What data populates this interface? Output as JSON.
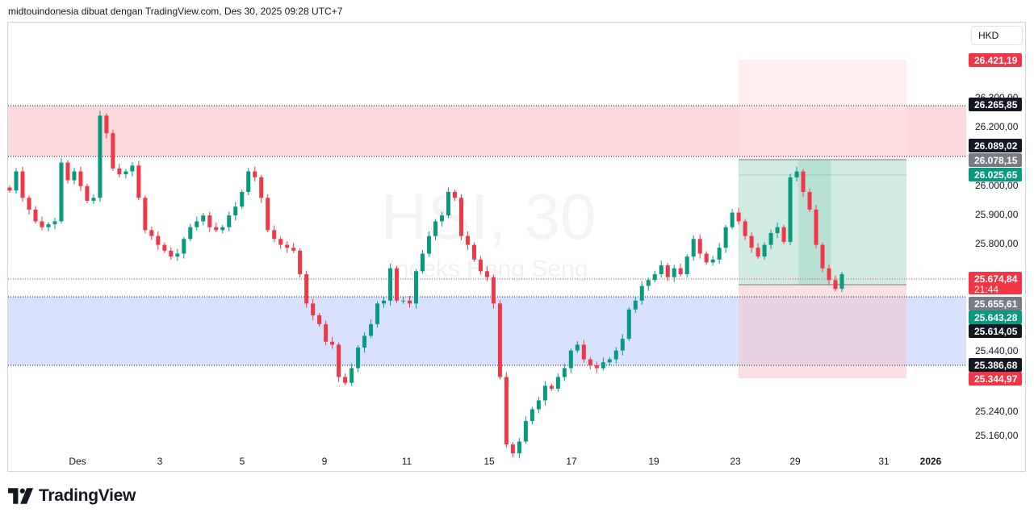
{
  "header": {
    "text": "midtouindonesia dibuat dengan TradingView.com, Des 30, 2025 09:28 UTC+7"
  },
  "currency": "HKD",
  "watermark": {
    "symbol": "HSI, 30",
    "name": "Indeks Hang Seng"
  },
  "brand": {
    "name": "TradingView"
  },
  "colors": {
    "up": "#089981",
    "down": "#f23645",
    "resistance_zone": "#fcd5d8",
    "support_zone": "#d6e0ff",
    "target_zone": "#d5ece6",
    "stop_zone": "#fde2e4"
  },
  "price_axis": {
    "ticks": [
      "26.300,00",
      "26.200,00",
      "26.000,00",
      "25.900,00",
      "25.800,00",
      "25.440,00",
      "25.240,00",
      "25.160,00"
    ],
    "labels": [
      {
        "text": "26.421,19",
        "kind": "red"
      },
      {
        "text": "26.265,85",
        "kind": "black"
      },
      {
        "text": "26.089,02",
        "kind": "black"
      },
      {
        "text": "26.078,15",
        "kind": "gray"
      },
      {
        "text": "26.025,65",
        "kind": "green"
      },
      {
        "text": "25.674,84",
        "kind": "red",
        "sub": "21:44"
      },
      {
        "text": "25.655,61",
        "kind": "gray"
      },
      {
        "text": "25.643,28",
        "kind": "green"
      },
      {
        "text": "25.614,05",
        "kind": "black"
      },
      {
        "text": "25.386,68",
        "kind": "black"
      },
      {
        "text": "25.344,97",
        "kind": "red"
      }
    ]
  },
  "time_axis": {
    "ticks": [
      "Des",
      "3",
      "5",
      "9",
      "11",
      "15",
      "17",
      "19",
      "23",
      "29",
      "31",
      "2026"
    ]
  },
  "chart_data": {
    "type": "candlestick",
    "resistance_zone": [
      26089.02,
      26265.85
    ],
    "support_zone": [
      25386.68,
      25614.05
    ],
    "last_price": 25674.84,
    "position": {
      "entry": 25655.61,
      "target": 26421.19,
      "stop": 25344.97
    },
    "closes": [
      25985,
      26050,
      25960,
      25920,
      25880,
      25860,
      25870,
      25880,
      26080,
      26020,
      26050,
      26000,
      25950,
      25960,
      26240,
      26180,
      26060,
      26040,
      26050,
      26070,
      25960,
      25850,
      25830,
      25800,
      25780,
      25760,
      25770,
      25820,
      25860,
      25880,
      25900,
      25860,
      25850,
      25860,
      25900,
      25930,
      25980,
      26050,
      26030,
      25960,
      25850,
      25820,
      25800,
      25790,
      25780,
      25700,
      25600,
      25560,
      25530,
      25470,
      25460,
      25350,
      25330,
      25380,
      25450,
      25490,
      25530,
      25600,
      25610,
      25720,
      25610,
      25610,
      25600,
      25710,
      25770,
      25830,
      25880,
      25900,
      25980,
      25960,
      25830,
      25800,
      25750,
      25710,
      25690,
      25600,
      25350,
      25120,
      25090,
      25130,
      25200,
      25240,
      25270,
      25320,
      25310,
      25350,
      25380,
      25440,
      25460,
      25410,
      25390,
      25380,
      25400,
      25410,
      25440,
      25480,
      25580,
      25610,
      25660,
      25680,
      25700,
      25730,
      25690,
      25720,
      25700,
      25760,
      25820,
      25770,
      25740,
      25750,
      25790,
      25860,
      25910,
      25880,
      25830,
      25790,
      25760,
      25800,
      25840,
      25860,
      25810,
      26030,
      26050,
      25980,
      25920,
      25800,
      25720,
      25680,
      25650,
      25700
    ]
  }
}
